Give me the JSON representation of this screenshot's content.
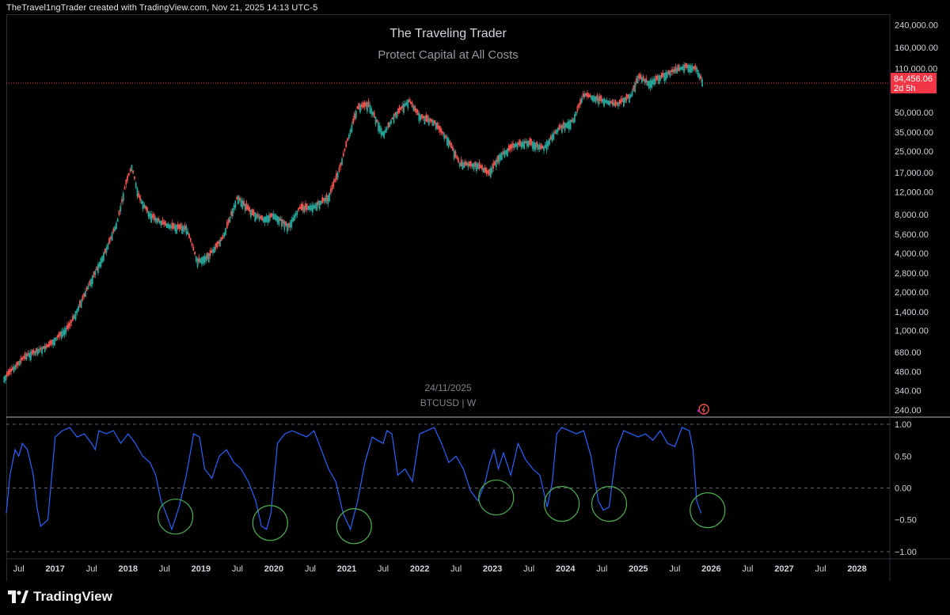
{
  "header": {
    "attribution": "TheTravel1ngTrader created with TradingView.com, Nov 21, 2025 14:13 UTC-5"
  },
  "chart_overlay": {
    "title": "The Traveling Trader",
    "subtitle": "Protect Capital at All Costs",
    "watermark_date": "24/11/2025",
    "watermark_symbol": "BTCUSD | W"
  },
  "price_tag": {
    "price": "84,456.06",
    "countdown": "2d 5h",
    "color": "#f23645"
  },
  "footer": {
    "brand": "TradingView",
    "logo_icon": "tradingview-logo-icon"
  },
  "colors": {
    "up_candle": "#26a69a",
    "down_candle": "#ef5350",
    "oscillator_line": "#2962ff",
    "circle_highlight": "#4caf50",
    "current_price_line": "#f23645"
  },
  "chart_data": [
    {
      "type": "candlestick",
      "symbol": "BTCUSD",
      "interval": "W",
      "scale": "log",
      "y_ticks": [
        "240,000.00",
        "160,000.00",
        "110,000.00",
        "50,000.00",
        "35,000.00",
        "25,000.00",
        "17,000.00",
        "12,000.00",
        "8,000.00",
        "5,600.00",
        "4,000.00",
        "2,800.00",
        "2,000.00",
        "1,400.00",
        "1,000.00",
        "680.00",
        "480.00",
        "340.00",
        "240.00"
      ],
      "y_tick_values": [
        240000,
        160000,
        110000,
        50000,
        35000,
        25000,
        17000,
        12000,
        8000,
        5600,
        4000,
        2800,
        2000,
        1400,
        1000,
        680,
        480,
        340,
        240
      ],
      "x": [
        2016.3,
        2016.6,
        2016.9,
        2017.2,
        2017.5,
        2017.7,
        2017.85,
        2017.97,
        2018.05,
        2018.15,
        2018.3,
        2018.45,
        2018.6,
        2018.8,
        2018.95,
        2019.1,
        2019.3,
        2019.5,
        2019.7,
        2019.85,
        2020.0,
        2020.2,
        2020.35,
        2020.55,
        2020.75,
        2020.9,
        2021.0,
        2021.15,
        2021.3,
        2021.5,
        2021.65,
        2021.85,
        2022.0,
        2022.2,
        2022.4,
        2022.55,
        2022.8,
        2022.95,
        2023.1,
        2023.3,
        2023.5,
        2023.7,
        2023.9,
        2024.1,
        2024.25,
        2024.5,
        2024.7,
        2024.9,
        2025.0,
        2025.15,
        2025.3,
        2025.5,
        2025.65,
        2025.8,
        2025.89
      ],
      "close": [
        430,
        640,
        760,
        1100,
        2500,
        4300,
        7000,
        14000,
        19000,
        11000,
        8000,
        7000,
        6500,
        6300,
        3500,
        3800,
        5300,
        11000,
        8300,
        7400,
        8000,
        6500,
        9000,
        9300,
        11000,
        18000,
        29000,
        55000,
        58000,
        34000,
        47000,
        62000,
        47000,
        42000,
        30000,
        20000,
        19500,
        16800,
        23000,
        28000,
        29500,
        26500,
        37500,
        43000,
        69000,
        63000,
        58000,
        68000,
        96000,
        85000,
        95000,
        107000,
        115000,
        110000,
        84456
      ],
      "current_price": 84456.06,
      "x_ticks": [
        "Jul",
        "2017",
        "Jul",
        "2018",
        "Jul",
        "2019",
        "Jul",
        "2020",
        "Jul",
        "2021",
        "Jul",
        "2022",
        "Jul",
        "2023",
        "Jul",
        "2024",
        "Jul",
        "2025",
        "Jul",
        "2026",
        "Jul",
        "2027",
        "Jul",
        "2028"
      ],
      "x_tick_values": [
        2016.5,
        2017,
        2017.5,
        2018,
        2018.5,
        2019,
        2019.5,
        2020,
        2020.5,
        2021,
        2021.5,
        2022,
        2022.5,
        2023,
        2023.5,
        2024,
        2024.5,
        2025,
        2025.5,
        2026,
        2026.5,
        2027,
        2027.5,
        2028
      ],
      "x_range": [
        2016.33,
        2028.45
      ]
    },
    {
      "type": "line",
      "y_ticks": [
        "1.00",
        "0.50",
        "0.00",
        "−0.50",
        "−1.00"
      ],
      "y_tick_values": [
        1,
        0.5,
        0,
        -0.5,
        -1
      ],
      "ylim": [
        -1.1,
        1.1
      ],
      "dashed_levels": [
        1,
        0,
        -1
      ],
      "x": [
        2016.33,
        2016.38,
        2016.45,
        2016.5,
        2016.55,
        2016.62,
        2016.7,
        2016.75,
        2016.8,
        2016.9,
        2017.0,
        2017.1,
        2017.2,
        2017.3,
        2017.4,
        2017.5,
        2017.55,
        2017.6,
        2017.7,
        2017.8,
        2017.9,
        2018.0,
        2018.1,
        2018.2,
        2018.3,
        2018.38,
        2018.45,
        2018.52,
        2018.6,
        2018.7,
        2018.8,
        2018.9,
        2018.98,
        2019.05,
        2019.15,
        2019.25,
        2019.35,
        2019.45,
        2019.55,
        2019.65,
        2019.75,
        2019.83,
        2019.9,
        2019.96,
        2020.05,
        2020.15,
        2020.25,
        2020.35,
        2020.45,
        2020.55,
        2020.65,
        2020.75,
        2020.85,
        2020.95,
        2021.05,
        2021.15,
        2021.25,
        2021.35,
        2021.42,
        2021.5,
        2021.55,
        2021.62,
        2021.7,
        2021.8,
        2021.9,
        2022.0,
        2022.1,
        2022.2,
        2022.3,
        2022.4,
        2022.5,
        2022.6,
        2022.7,
        2022.8,
        2022.9,
        2022.96,
        2023.02,
        2023.08,
        2023.15,
        2023.25,
        2023.35,
        2023.45,
        2023.55,
        2023.65,
        2023.75,
        2023.82,
        2023.88,
        2023.95,
        2024.05,
        2024.15,
        2024.25,
        2024.35,
        2024.45,
        2024.52,
        2024.6,
        2024.7,
        2024.8,
        2024.9,
        2025.0,
        2025.1,
        2025.2,
        2025.3,
        2025.4,
        2025.5,
        2025.6,
        2025.7,
        2025.75,
        2025.8,
        2025.86
      ],
      "values": [
        -0.4,
        0.2,
        0.6,
        0.5,
        0.7,
        0.6,
        0.2,
        -0.3,
        -0.6,
        -0.5,
        0.8,
        0.9,
        0.95,
        0.8,
        0.85,
        0.7,
        0.6,
        0.9,
        0.85,
        0.9,
        0.7,
        0.85,
        0.7,
        0.5,
        0.4,
        0.2,
        -0.2,
        -0.4,
        -0.65,
        -0.3,
        0.2,
        0.85,
        0.8,
        0.3,
        0.15,
        0.5,
        0.6,
        0.4,
        0.3,
        0.1,
        -0.2,
        -0.6,
        -0.65,
        -0.4,
        0.7,
        0.85,
        0.9,
        0.85,
        0.8,
        0.9,
        0.6,
        0.3,
        0.1,
        -0.4,
        -0.65,
        -0.2,
        0.4,
        0.8,
        0.75,
        0.7,
        0.9,
        0.85,
        0.2,
        0.3,
        0.1,
        0.85,
        0.9,
        0.95,
        0.7,
        0.4,
        0.5,
        0.3,
        -0.05,
        -0.2,
        0.1,
        0.4,
        0.6,
        0.3,
        0.55,
        0.2,
        0.7,
        0.45,
        0.3,
        0.2,
        -0.3,
        0.1,
        0.85,
        0.95,
        0.9,
        0.85,
        0.9,
        0.5,
        -0.2,
        -0.35,
        -0.3,
        0.6,
        0.9,
        0.85,
        0.8,
        0.85,
        0.75,
        0.9,
        0.7,
        0.65,
        0.95,
        0.9,
        0.6,
        -0.2,
        -0.4
      ],
      "circled_troughs": [
        {
          "x": 2018.65,
          "y": -0.45
        },
        {
          "x": 2019.95,
          "y": -0.55
        },
        {
          "x": 2021.1,
          "y": -0.6
        },
        {
          "x": 2023.05,
          "y": -0.15
        },
        {
          "x": 2023.95,
          "y": -0.25
        },
        {
          "x": 2024.6,
          "y": -0.25
        },
        {
          "x": 2025.95,
          "y": -0.35
        }
      ]
    }
  ]
}
